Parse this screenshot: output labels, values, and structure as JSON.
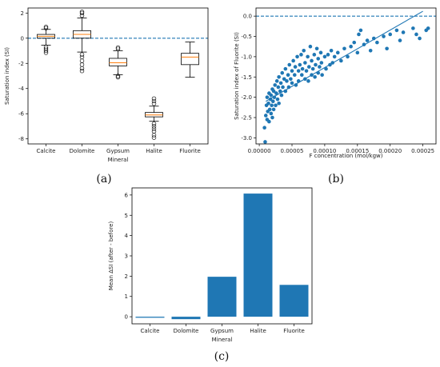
{
  "figure": {
    "panels": [
      "(a)",
      "(b)",
      "(c)"
    ]
  },
  "colors": {
    "primary": "#1f77b4",
    "median": "#ff7f0e",
    "axes": "#000000"
  },
  "chart_data": [
    {
      "panel": "(a)",
      "type": "box",
      "xlabel": "Mineral",
      "ylabel": "Saturation index (SI)",
      "ylim": [
        -8.4,
        2.4
      ],
      "yticks": [
        2,
        0,
        -2,
        -4,
        -6,
        -8
      ],
      "reference_line": 0,
      "categories": [
        "Calcite",
        "Dolomite",
        "Gypsum",
        "Halite",
        "Fluorite"
      ],
      "boxes": [
        {
          "name": "Calcite",
          "whislo": -0.55,
          "q1": 0.0,
          "med": 0.15,
          "q3": 0.3,
          "whishi": 0.7,
          "fliers": [
            0.8,
            0.9,
            -0.7,
            -0.85,
            -1.0,
            -1.15
          ]
        },
        {
          "name": "Dolomite",
          "whislo": -1.1,
          "q1": 0.0,
          "med": 0.3,
          "q3": 0.6,
          "whishi": 1.6,
          "fliers": [
            1.8,
            2.0,
            2.1,
            -1.3,
            -1.5,
            -1.8,
            -2.1,
            -2.4,
            -2.6
          ]
        },
        {
          "name": "Gypsum",
          "whislo": -2.9,
          "q1": -2.2,
          "med": -1.95,
          "q3": -1.6,
          "whishi": -1.0,
          "fliers": [
            -0.85,
            -0.75,
            -3.0,
            -3.1
          ]
        },
        {
          "name": "Halite",
          "whislo": -6.6,
          "q1": -6.25,
          "med": -6.1,
          "q3": -5.9,
          "whishi": -5.4,
          "fliers": [
            -5.2,
            -5.0,
            -4.8,
            -6.8,
            -7.0,
            -7.2,
            -7.4,
            -7.7,
            -7.9
          ]
        },
        {
          "name": "Fluorite",
          "whislo": -3.1,
          "q1": -2.1,
          "med": -1.5,
          "q3": -1.2,
          "whishi": -0.3,
          "fliers": []
        }
      ]
    },
    {
      "panel": "(b)",
      "type": "scatter",
      "xlabel": "F concentration (mol/kgw)",
      "ylabel": "Saturation index of Fluorite (SI)",
      "xlim": [
        -5e-06,
        0.00027
      ],
      "ylim": [
        -3.15,
        0.2
      ],
      "xticks": [
        0.0,
        5e-05,
        0.0001,
        0.00015,
        0.0002,
        0.00025
      ],
      "xtick_labels": [
        "0.00000",
        "0.00005",
        "0.00010",
        "0.00015",
        "0.00020",
        "0.00025"
      ],
      "yticks": [
        0.0,
        -0.5,
        -1.0,
        -1.5,
        -2.0,
        -2.5,
        -3.0
      ],
      "ytick_labels": [
        "0.0",
        "-0.5",
        "-1.0",
        "-1.5",
        "-2.0",
        "-2.5",
        "-3.0"
      ],
      "reference_line": 0,
      "trend_line": {
        "x": [
          1e-05,
          0.00025
        ],
        "y": [
          -2.1,
          0.12
        ]
      },
      "points": [
        [
          8e-06,
          -2.75
        ],
        [
          9e-06,
          -3.1
        ],
        [
          1e-05,
          -2.45
        ],
        [
          1.1e-05,
          -2.2
        ],
        [
          1.2e-05,
          -2.55
        ],
        [
          1.2e-05,
          -2.0
        ],
        [
          1.3e-05,
          -2.35
        ],
        [
          1.4e-05,
          -2.15
        ],
        [
          1.5e-05,
          -1.9
        ],
        [
          1.5e-05,
          -2.6
        ],
        [
          1.6e-05,
          -2.3
        ],
        [
          1.7e-05,
          -2.05
        ],
        [
          1.8e-05,
          -2.4
        ],
        [
          1.8e-05,
          -1.95
        ],
        [
          1.9e-05,
          -2.2
        ],
        [
          2e-05,
          -1.8
        ],
        [
          2e-05,
          -2.5
        ],
        [
          2.1e-05,
          -2.1
        ],
        [
          2.2e-05,
          -1.85
        ],
        [
          2.2e-05,
          -2.3
        ],
        [
          2.3e-05,
          -2.0
        ],
        [
          2.4e-05,
          -1.7
        ],
        [
          2.5e-05,
          -2.2
        ],
        [
          2.6e-05,
          -1.9
        ],
        [
          2.7e-05,
          -1.6
        ],
        [
          2.8e-05,
          -2.05
        ],
        [
          2.9e-05,
          -1.75
        ],
        [
          3e-05,
          -1.5
        ],
        [
          3e-05,
          -2.15
        ],
        [
          3.2e-05,
          -1.85
        ],
        [
          3.3e-05,
          -1.65
        ],
        [
          3.4e-05,
          -1.95
        ],
        [
          3.5e-05,
          -1.4
        ],
        [
          3.6e-05,
          -1.75
        ],
        [
          3.8e-05,
          -1.55
        ],
        [
          4e-05,
          -1.85
        ],
        [
          4e-05,
          -1.3
        ],
        [
          4.2e-05,
          -1.6
        ],
        [
          4.4e-05,
          -1.45
        ],
        [
          4.5e-05,
          -1.75
        ],
        [
          4.6e-05,
          -1.2
        ],
        [
          4.8e-05,
          -1.55
        ],
        [
          5e-05,
          -1.35
        ],
        [
          5e-05,
          -1.65
        ],
        [
          5.2e-05,
          -1.1
        ],
        [
          5.4e-05,
          -1.45
        ],
        [
          5.5e-05,
          -1.25
        ],
        [
          5.6e-05,
          -1.7
        ],
        [
          5.8e-05,
          -1.0
        ],
        [
          6e-05,
          -1.35
        ],
        [
          6e-05,
          -1.6
        ],
        [
          6.2e-05,
          -1.2
        ],
        [
          6.4e-05,
          -0.95
        ],
        [
          6.5e-05,
          -1.45
        ],
        [
          6.6e-05,
          -1.3
        ],
        [
          6.8e-05,
          -0.85
        ],
        [
          7e-05,
          -1.15
        ],
        [
          7e-05,
          -1.55
        ],
        [
          7.2e-05,
          -1.35
        ],
        [
          7.4e-05,
          -1.0
        ],
        [
          7.5e-05,
          -1.6
        ],
        [
          7.6e-05,
          -1.25
        ],
        [
          7.8e-05,
          -0.75
        ],
        [
          8e-05,
          -1.1
        ],
        [
          8e-05,
          -1.45
        ],
        [
          8.2e-05,
          -1.3
        ],
        [
          8.4e-05,
          -0.95
        ],
        [
          8.5e-05,
          -1.5
        ],
        [
          8.6e-05,
          -1.2
        ],
        [
          8.8e-05,
          -0.8
        ],
        [
          9e-05,
          -1.05
        ],
        [
          9e-05,
          -1.4
        ],
        [
          9.2e-05,
          -1.25
        ],
        [
          9.4e-05,
          -0.9
        ],
        [
          9.5e-05,
          -1.15
        ],
        [
          9.6e-05,
          -1.45
        ],
        [
          0.0001,
          -1.0
        ],
        [
          0.000102,
          -1.3
        ],
        [
          0.000105,
          -0.95
        ],
        [
          0.000108,
          -1.2
        ],
        [
          0.00011,
          -0.85
        ],
        [
          0.000112,
          -1.15
        ],
        [
          0.000115,
          -1.0
        ],
        [
          0.00012,
          -0.9
        ],
        [
          0.000125,
          -1.1
        ],
        [
          0.00013,
          -0.8
        ],
        [
          0.000135,
          -1.0
        ],
        [
          0.00014,
          -0.75
        ],
        [
          0.000145,
          -0.65
        ],
        [
          0.00015,
          -0.9
        ],
        [
          0.000152,
          -0.45
        ],
        [
          0.000155,
          -0.35
        ],
        [
          0.00016,
          -0.7
        ],
        [
          0.000165,
          -0.6
        ],
        [
          0.00017,
          -0.85
        ],
        [
          0.000175,
          -0.55
        ],
        [
          0.00018,
          -0.65
        ],
        [
          0.00019,
          -0.5
        ],
        [
          0.000195,
          -0.8
        ],
        [
          0.0002,
          -0.45
        ],
        [
          0.00021,
          -0.35
        ],
        [
          0.000215,
          -0.6
        ],
        [
          0.00022,
          -0.4
        ],
        [
          0.000235,
          -0.3
        ],
        [
          0.00024,
          -0.45
        ],
        [
          0.000245,
          -0.55
        ],
        [
          0.000255,
          -0.35
        ],
        [
          0.000258,
          -0.3
        ]
      ]
    },
    {
      "panel": "(c)",
      "type": "bar",
      "xlabel": "Mineral",
      "ylabel": "Mean ΔSI (after - before)",
      "ylim": [
        -0.35,
        6.35
      ],
      "yticks": [
        0,
        1,
        2,
        3,
        4,
        5,
        6
      ],
      "categories": [
        "Calcite",
        "Dolomite",
        "Gypsum",
        "Halite",
        "Fluorite"
      ],
      "values": [
        -0.05,
        -0.12,
        1.97,
        6.07,
        1.57
      ]
    }
  ]
}
